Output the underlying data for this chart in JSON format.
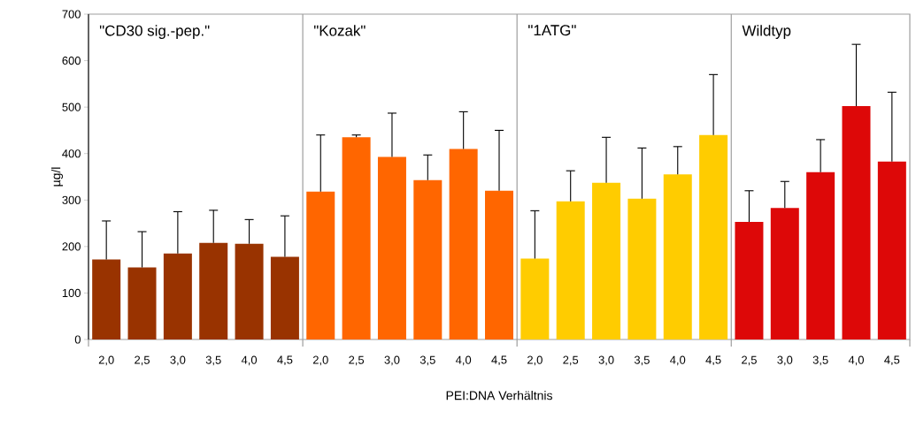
{
  "chart_data": {
    "type": "bar",
    "xlabel": "PEI:DNA Verhältnis",
    "ylabel": "µg/l",
    "annotations": [
      "\"CD30 sig.-pep.\"",
      "\"Kozak\"",
      "\"1ATG\"",
      "Wildtyp"
    ],
    "categories": [
      "2,0",
      "2,5",
      "3,0",
      "3,5",
      "4,0",
      "4,5",
      "2,0",
      "2,5",
      "3,0",
      "3,5",
      "4,0",
      "4,5",
      "2,0",
      "2,5",
      "3,0",
      "3,5",
      "4,0",
      "4,5",
      "2,5",
      "3,0",
      "3,5",
      "4,0",
      "4,5"
    ],
    "ylim": [
      0,
      700
    ],
    "yticks": [
      0,
      100,
      200,
      300,
      400,
      500,
      600,
      700
    ],
    "grid": false,
    "series": [
      {
        "color": "#993300",
        "values": [
          172,
          155,
          185,
          208,
          206,
          178,
          null,
          null,
          null,
          null,
          null,
          null,
          null,
          null,
          null,
          null,
          null,
          null,
          null,
          null,
          null,
          null,
          null
        ],
        "errors": [
          [
            172,
            255
          ],
          [
            155,
            232
          ],
          [
            185,
            275
          ],
          [
            208,
            278
          ],
          [
            206,
            258
          ],
          [
            178,
            266
          ],
          null,
          null,
          null,
          null,
          null,
          null,
          null,
          null,
          null,
          null,
          null,
          null,
          null,
          null,
          null,
          null,
          null
        ]
      },
      {
        "color": "#ff6600",
        "values": [
          null,
          null,
          null,
          null,
          null,
          null,
          318,
          435,
          393,
          343,
          410,
          320,
          null,
          null,
          null,
          null,
          null,
          null,
          null,
          null,
          null,
          null,
          null
        ],
        "errors": [
          null,
          null,
          null,
          null,
          null,
          null,
          [
            318,
            440
          ],
          [
            435,
            440
          ],
          [
            393,
            487
          ],
          [
            343,
            397
          ],
          [
            410,
            490
          ],
          [
            320,
            450
          ],
          null,
          null,
          null,
          null,
          null,
          null,
          null,
          null,
          null,
          null,
          null
        ]
      },
      {
        "color": "#ffcc00",
        "values": [
          null,
          null,
          null,
          null,
          null,
          null,
          null,
          null,
          null,
          null,
          null,
          null,
          174,
          297,
          337,
          303,
          355,
          440,
          null,
          null,
          null,
          null,
          null
        ],
        "errors": [
          null,
          null,
          null,
          null,
          null,
          null,
          null,
          null,
          null,
          null,
          null,
          null,
          [
            174,
            277
          ],
          [
            297,
            363
          ],
          [
            337,
            435
          ],
          [
            303,
            412
          ],
          [
            355,
            415
          ],
          [
            440,
            570
          ],
          null,
          null,
          null,
          null,
          null
        ]
      },
      {
        "color": "#dd0808",
        "values": [
          null,
          null,
          null,
          null,
          null,
          null,
          null,
          null,
          null,
          null,
          null,
          null,
          null,
          null,
          null,
          null,
          null,
          null,
          253,
          283,
          360,
          502,
          383
        ],
        "errors": [
          null,
          null,
          null,
          null,
          null,
          null,
          null,
          null,
          null,
          null,
          null,
          null,
          null,
          null,
          null,
          null,
          null,
          null,
          [
            253,
            320
          ],
          [
            283,
            340
          ],
          [
            360,
            430
          ],
          [
            502,
            635
          ],
          [
            383,
            532
          ]
        ]
      }
    ]
  }
}
